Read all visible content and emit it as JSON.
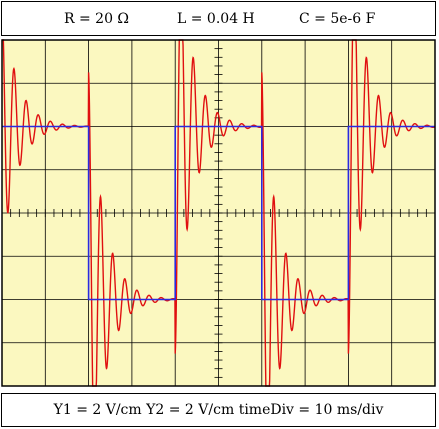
{
  "header": {
    "resistance": "R = 20 Ω",
    "inductance": "L = 0.04 H",
    "capacitance": "C = 5e-6 F"
  },
  "footer": {
    "y1": "Y1 = 2 V/cm",
    "y2": "Y2 = 2 V/cm",
    "time_div": "timeDiv = 10 ms/div"
  },
  "colors": {
    "screen_background": "#fbf8c0",
    "grid": "#000000",
    "input_trace": "#2a2ae0",
    "response_trace": "#e01010"
  },
  "chart_data": {
    "type": "line",
    "title": "",
    "xlabel": "",
    "ylabel": "",
    "grid": true,
    "divisions": {
      "x": 10,
      "y": 8
    },
    "xlim": [
      0,
      100
    ],
    "ylim": [
      -8,
      8
    ],
    "x_unit": "ms",
    "y_unit": "V",
    "series": [
      {
        "role": "input",
        "color": "#2a2ae0",
        "waveform": "square",
        "high": 4,
        "low": -4,
        "edges": [
          {
            "t": 20,
            "to": -4
          },
          {
            "t": 40,
            "to": 4
          },
          {
            "t": 60,
            "to": -4
          },
          {
            "t": 80,
            "to": 4
          }
        ],
        "initial_level": 4
      },
      {
        "role": "response",
        "color": "#e01010",
        "waveform": "damped-oscillation",
        "start_overshoot": 6.5,
        "peak_amplitude": 6.5,
        "oscillation_period": 2.8,
        "decay_time": 3.5,
        "settles_to_input": true
      }
    ]
  }
}
